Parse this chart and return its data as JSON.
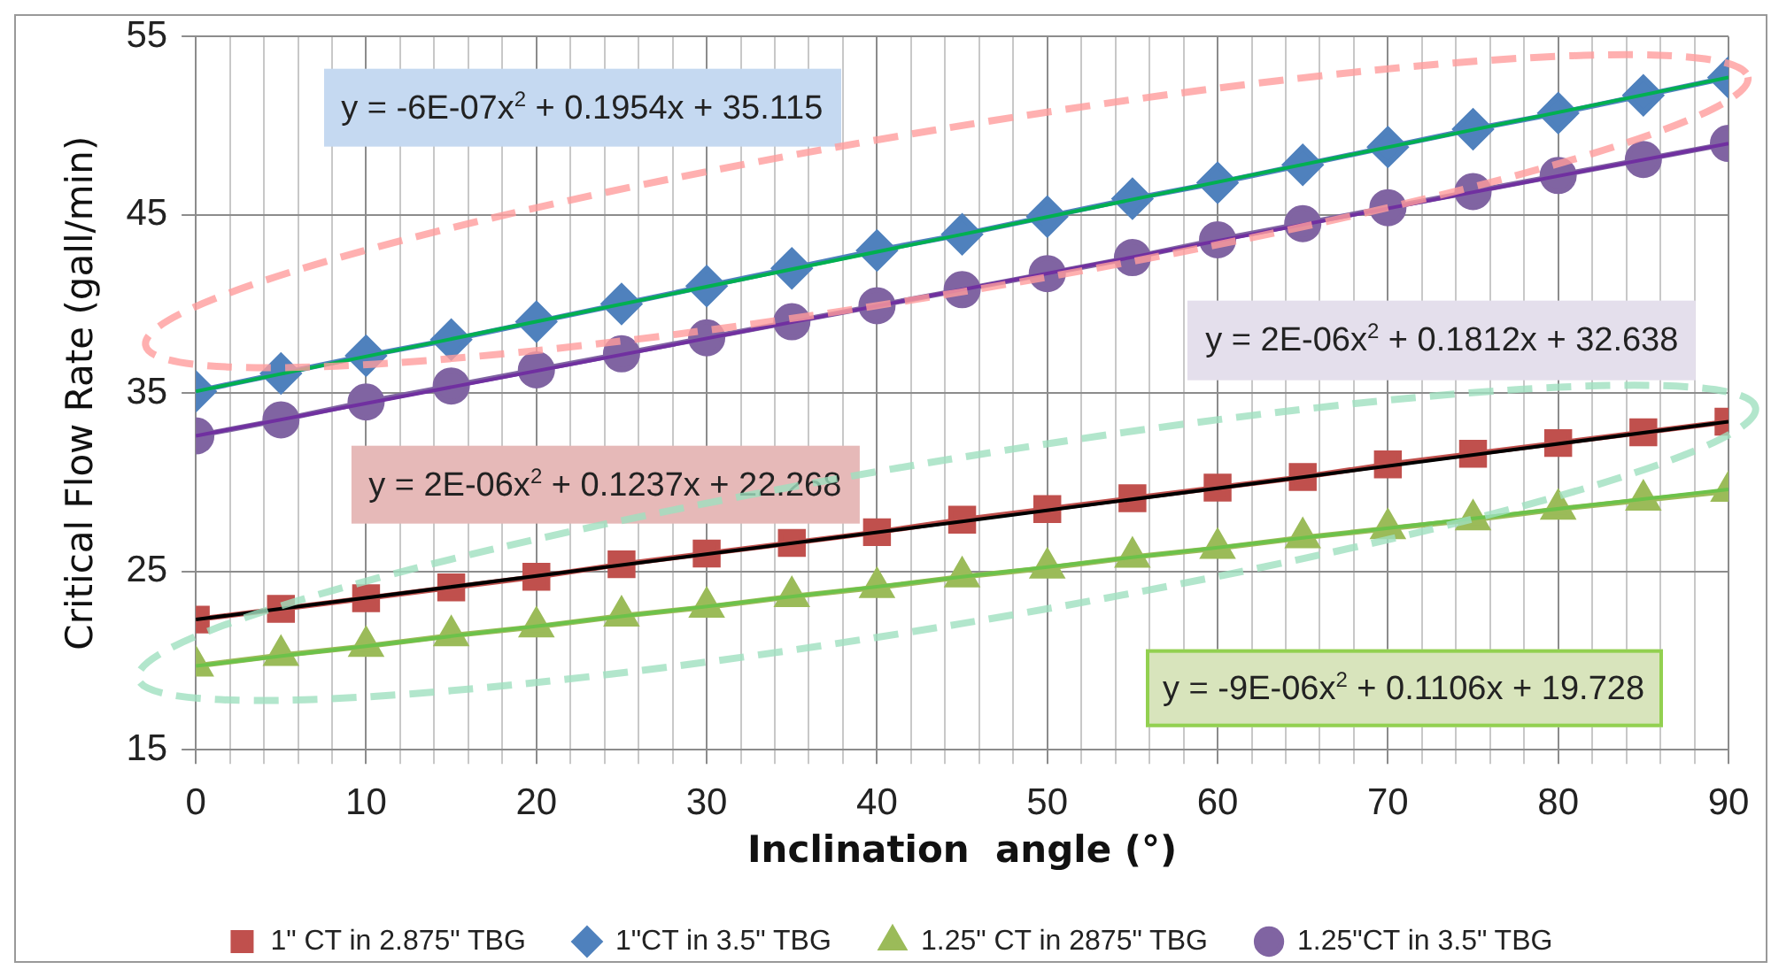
{
  "chart_data": {
    "type": "line",
    "xlabel": "Inclination  angle (°)",
    "ylabel": "Critical Flow Rate (gall/min)",
    "x": [
      0,
      5,
      10,
      15,
      20,
      25,
      30,
      35,
      40,
      45,
      50,
      55,
      60,
      65,
      70,
      75,
      80,
      85,
      90
    ],
    "series": [
      {
        "name": "1\" CT in 2.875\" TBG",
        "color": "#c0504d",
        "marker": "square",
        "values": [
          22.3,
          22.9,
          23.5,
          24.1,
          24.7,
          25.4,
          26.0,
          26.6,
          27.2,
          27.9,
          28.5,
          29.1,
          29.7,
          30.3,
          31.0,
          31.6,
          32.2,
          32.8,
          33.4
        ]
      },
      {
        "name": "1\"CT in 3.5\" TBG",
        "color": "#4f81bd",
        "marker": "diamond",
        "values": [
          35.1,
          36.1,
          37.1,
          38.0,
          39.0,
          40.0,
          41.0,
          42.0,
          43.0,
          43.9,
          44.9,
          45.9,
          46.8,
          47.8,
          48.8,
          49.8,
          50.7,
          51.7,
          52.7
        ]
      },
      {
        "name": "1.25\" CT in 2875\" TBG",
        "color": "#9bbb59",
        "marker": "triangle",
        "values": [
          19.7,
          20.3,
          20.8,
          21.4,
          21.9,
          22.5,
          23.0,
          23.6,
          24.1,
          24.7,
          25.2,
          25.8,
          26.3,
          26.9,
          27.4,
          27.9,
          28.5,
          29.0,
          29.5
        ]
      },
      {
        "name": "1.25\"CT in 3.5\" TBG",
        "color": "#8064a2",
        "marker": "circle",
        "values": [
          32.6,
          33.5,
          34.5,
          35.4,
          36.3,
          37.2,
          38.1,
          39.0,
          39.9,
          40.8,
          41.7,
          42.6,
          43.6,
          44.5,
          45.4,
          46.3,
          47.2,
          48.1,
          49.0
        ]
      },
      {
        "type": "line",
        "color": "#00b050",
        "marker": "none",
        "x": [
          0,
          45,
          90
        ],
        "values": [
          35.1,
          43.9,
          52.7
        ]
      },
      {
        "type": "line",
        "color": "#7030a0",
        "marker": "none",
        "x": [
          0,
          45,
          90
        ],
        "values": [
          32.6,
          40.8,
          49.0
        ]
      },
      {
        "type": "line",
        "color": "#000000",
        "marker": "none",
        "x": [
          0,
          45,
          90
        ],
        "values": [
          22.3,
          27.8,
          33.4
        ]
      },
      {
        "type": "line",
        "color": "#6cc24a",
        "marker": "none",
        "x": [
          0,
          45,
          90
        ],
        "values": [
          19.7,
          24.7,
          29.6
        ]
      }
    ],
    "xlim": [
      0,
      90
    ],
    "xticks": [
      0,
      {
        "value": 2,
        "label": null
      },
      {
        "value": 4,
        "label": null
      },
      {
        "value": 6,
        "label": null
      },
      {
        "value": 8,
        "label": null
      },
      10,
      {
        "value": 12,
        "label": null
      },
      {
        "value": 14,
        "label": null
      },
      {
        "value": 16,
        "label": null
      },
      {
        "value": 18,
        "label": null
      },
      20,
      {
        "value": 22,
        "label": null
      },
      {
        "value": 24,
        "label": null
      },
      {
        "value": 26,
        "label": null
      },
      {
        "value": 28,
        "label": null
      },
      30,
      {
        "value": 32,
        "label": null
      },
      {
        "value": 34,
        "label": null
      },
      {
        "value": 36,
        "label": null
      },
      {
        "value": 38,
        "label": null
      },
      40,
      {
        "value": 42,
        "label": null
      },
      {
        "value": 44,
        "label": null
      },
      {
        "value": 46,
        "label": null
      },
      {
        "value": 48,
        "label": null
      },
      50,
      {
        "value": 52,
        "label": null
      },
      {
        "value": 54,
        "label": null
      },
      {
        "value": 56,
        "label": null
      },
      {
        "value": 58,
        "label": null
      },
      60,
      {
        "value": 62,
        "label": null
      },
      {
        "value": 64,
        "label": null
      },
      {
        "value": 66,
        "label": null
      },
      {
        "value": 68,
        "label": null
      },
      70,
      {
        "value": 72,
        "label": null
      },
      {
        "value": 74,
        "label": null
      },
      {
        "value": 76,
        "label": null
      },
      {
        "value": 78,
        "label": null
      },
      80,
      {
        "value": 82,
        "label": null
      },
      {
        "value": 84,
        "label": null
      },
      {
        "value": 86,
        "label": null
      },
      {
        "value": 88,
        "label": null
      },
      90
    ],
    "ylim": [
      15,
      55
    ],
    "yticks": [
      15,
      25,
      35,
      45,
      55
    ],
    "grid": true,
    "legend": "bottom",
    "annotations": [
      "y = -6E-07x$^{2}$ + 0.1954x + 35.115",
      "y = 2E-06x$^{2}$ + 0.1812x + 32.638",
      "y = 2E-06x$^{2}$ + 0.1237x + 22.268",
      "y = -9E-06x$^{2}$ + 0.1106x + 19.728"
    ]
  }
}
